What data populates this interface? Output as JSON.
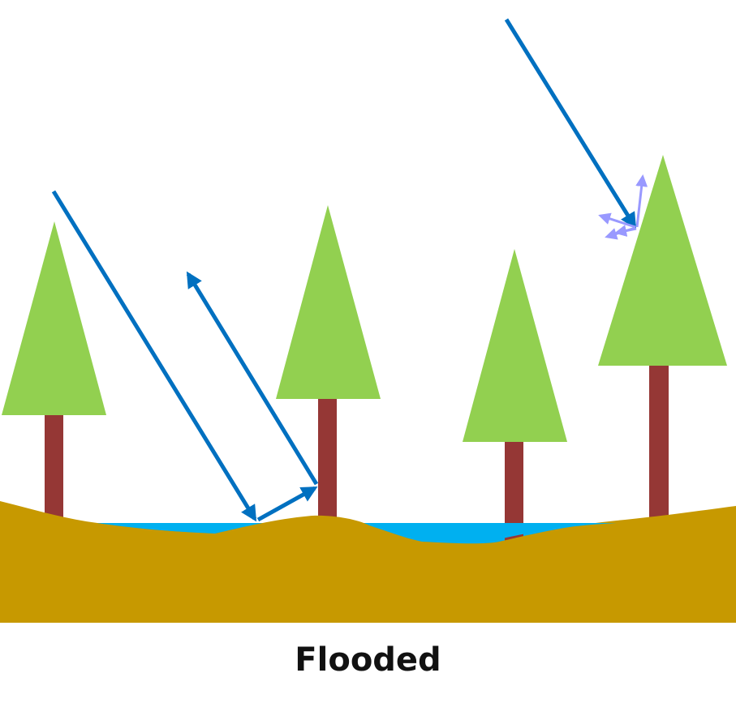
{
  "caption": "Flooded",
  "colors": {
    "background": "#ffffff",
    "canopy": "#92d050",
    "trunk": "#953735",
    "ground": "#c79900",
    "water": "#00b0f0",
    "radar_ray": "#0070c0",
    "scatter_ray": "#9999ff"
  },
  "elements": {
    "trees": [
      {
        "name": "tree-1"
      },
      {
        "name": "tree-2"
      },
      {
        "name": "tree-3"
      },
      {
        "name": "tree-4"
      }
    ],
    "rays": [
      {
        "name": "incident-ray-double-bounce",
        "kind": "radar_ray"
      },
      {
        "name": "ground-to-trunk-ray",
        "kind": "radar_ray"
      },
      {
        "name": "return-ray-double-bounce",
        "kind": "radar_ray"
      },
      {
        "name": "incident-ray-canopy",
        "kind": "radar_ray"
      }
    ],
    "scatter_arrows": 4
  }
}
